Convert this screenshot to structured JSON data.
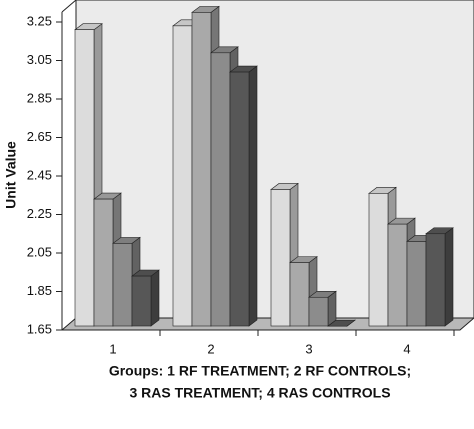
{
  "chart_data": {
    "type": "bar3d",
    "ylabel": "Unit Value",
    "xlabel": [
      "Groups: 1 RF TREATMENT; 2 RF CONTROLS;",
      "3 RAS TREATMENT; 4 RAS CONTROLS"
    ],
    "categories": [
      "1",
      "2",
      "3",
      "4"
    ],
    "series": [
      {
        "color": "#dcdcdc",
        "values": [
          3.21,
          3.23,
          2.38,
          2.36
        ]
      },
      {
        "color": "#a9a9a9",
        "values": [
          2.33,
          3.3,
          2.0,
          2.2
        ]
      },
      {
        "color": "#8c8c8c",
        "values": [
          2.1,
          3.09,
          1.82,
          2.11
        ]
      },
      {
        "color": "#575757",
        "values": [
          1.93,
          2.99,
          1.67,
          2.15
        ]
      }
    ],
    "ylim": [
      1.65,
      3.25
    ],
    "yticks": [
      1.65,
      1.85,
      2.05,
      2.25,
      2.45,
      2.65,
      2.85,
      3.05,
      3.25
    ]
  }
}
